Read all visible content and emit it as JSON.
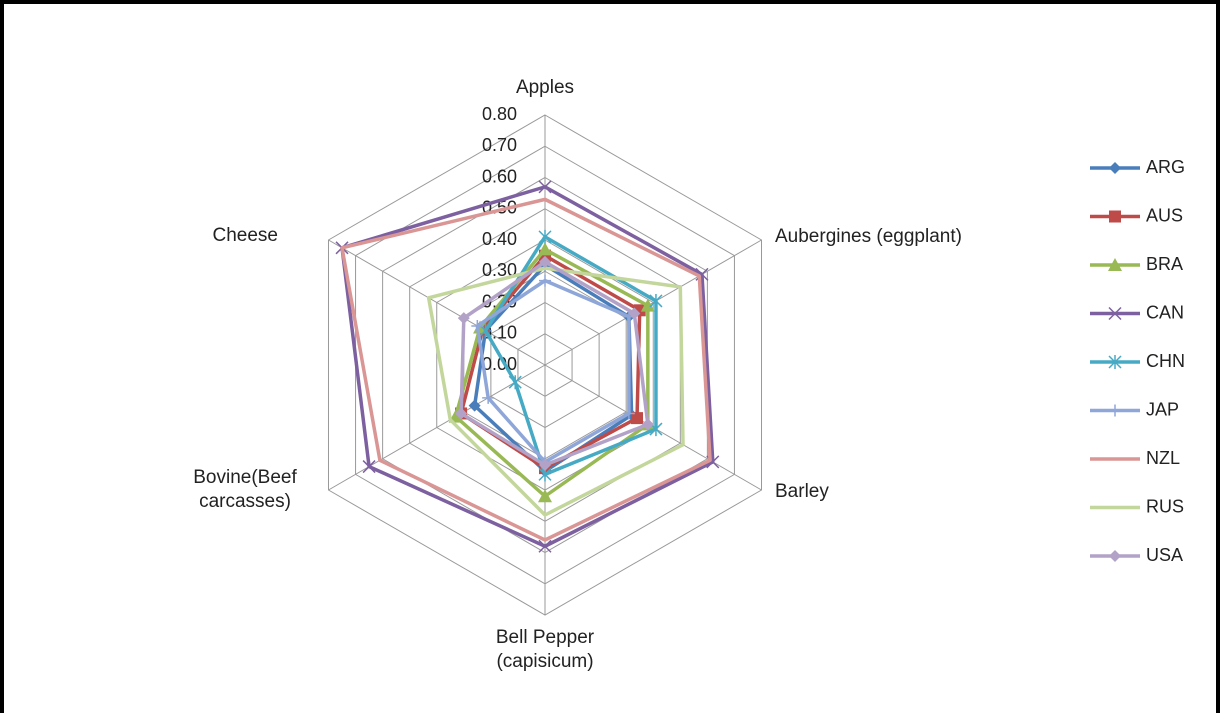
{
  "chart_data": {
    "type": "radar",
    "categories": [
      "Apples",
      "Aubergines (eggplant)",
      "Barley",
      "Bell Pepper (capisicum)",
      "Bovine(Beef carcasses)",
      "Cheese"
    ],
    "ylim": [
      0,
      0.8
    ],
    "yticks": [
      {
        "value": 0,
        "label": "0.00"
      },
      {
        "value": 0.1,
        "label": "0.10"
      },
      {
        "value": 0.2,
        "label": "0.20"
      },
      {
        "value": 0.3,
        "label": "0.30"
      },
      {
        "value": 0.4,
        "label": "0.40"
      },
      {
        "value": 0.5,
        "label": "0.50"
      },
      {
        "value": 0.6,
        "label": "0.60"
      },
      {
        "value": 0.7,
        "label": "0.70"
      },
      {
        "value": 0.8,
        "label": "0.80"
      }
    ],
    "series": [
      {
        "name": "ARG",
        "color": "#4a7ebb",
        "marker": "diamond",
        "values": [
          0.32,
          0.31,
          0.32,
          0.34,
          0.26,
          0.22
        ]
      },
      {
        "name": "AUS",
        "color": "#be4b48",
        "marker": "square",
        "values": [
          0.35,
          0.35,
          0.34,
          0.33,
          0.31,
          0.23
        ]
      },
      {
        "name": "BRA",
        "color": "#98b954",
        "marker": "triangle",
        "values": [
          0.37,
          0.38,
          0.38,
          0.42,
          0.33,
          0.24
        ]
      },
      {
        "name": "CAN",
        "color": "#7d60a0",
        "marker": "x",
        "values": [
          0.57,
          0.58,
          0.62,
          0.58,
          0.65,
          0.75
        ]
      },
      {
        "name": "CHN",
        "color": "#46aac5",
        "marker": "star",
        "values": [
          0.41,
          0.41,
          0.41,
          0.35,
          0.11,
          0.22
        ]
      },
      {
        "name": "JAP",
        "color": "#8ea6d8",
        "marker": "plus",
        "values": [
          0.27,
          0.31,
          0.31,
          0.31,
          0.21,
          0.25
        ]
      },
      {
        "name": "NZL",
        "color": "#d99694",
        "marker": "none",
        "values": [
          0.53,
          0.57,
          0.61,
          0.56,
          0.61,
          0.75
        ]
      },
      {
        "name": "RUS",
        "color": "#c3d69b",
        "marker": "none",
        "values": [
          0.31,
          0.5,
          0.51,
          0.48,
          0.35,
          0.43
        ]
      },
      {
        "name": "USA",
        "color": "#b3a2c7",
        "marker": "diamond",
        "values": [
          0.33,
          0.33,
          0.38,
          0.32,
          0.31,
          0.3
        ]
      }
    ]
  }
}
